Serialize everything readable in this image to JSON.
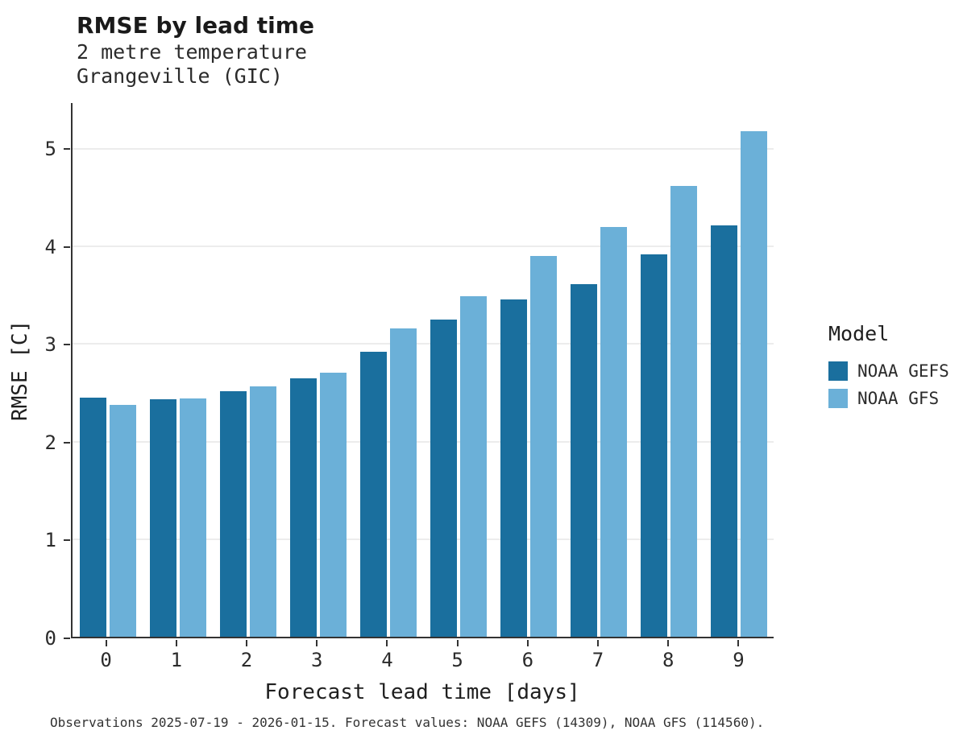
{
  "header": {
    "title": "RMSE by lead time",
    "subtitle": [
      "2 metre temperature",
      "Grangeville (GIC)"
    ]
  },
  "chart_data": {
    "type": "bar",
    "title": "RMSE by lead time",
    "subtitle": [
      "2 metre temperature",
      "Grangeville (GIC)"
    ],
    "categories": [
      "0",
      "1",
      "2",
      "3",
      "4",
      "5",
      "6",
      "7",
      "8",
      "9"
    ],
    "series": [
      {
        "name": "NOAA GEFS",
        "color": "#1a6f9e",
        "values": [
          2.45,
          2.43,
          2.52,
          2.65,
          2.92,
          3.25,
          3.46,
          3.61,
          3.92,
          4.22
        ]
      },
      {
        "name": "NOAA GFS",
        "color": "#6bb0d8",
        "values": [
          2.38,
          2.44,
          2.57,
          2.71,
          3.16,
          3.49,
          3.9,
          4.2,
          4.62,
          5.18
        ]
      }
    ],
    "xlabel": "Forecast lead time [days]",
    "ylabel": "RMSE [C]",
    "ylim": [
      0,
      5.47
    ],
    "yticks": [
      0,
      1,
      2,
      3,
      4,
      5
    ],
    "grid": "horizontal",
    "grid_color": "#d9d9d9",
    "axis_color": "#333333",
    "legend": {
      "title": "Model",
      "position": "right"
    }
  },
  "caption": "Observations 2025-07-19 - 2026-01-15. Forecast values: NOAA GEFS (14309), NOAA GFS (114560)."
}
